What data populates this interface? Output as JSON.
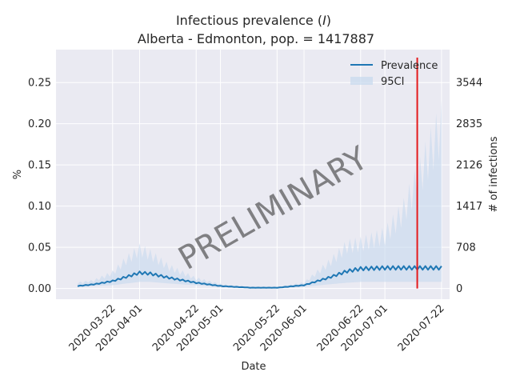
{
  "chart_data": {
    "type": "line",
    "title_line1_prefix": "Infectious prevalence (",
    "title_symbol": "I",
    "title_line1_suffix": ")",
    "title_line2": "Alberta - Edmonton, pop. = 1417887",
    "xlabel": "Date",
    "ylabel_left": "%",
    "ylabel_right": "# of infections",
    "watermark": "PRELIMINARY",
    "x_start": "2020-03-09",
    "x_end": "2020-07-22",
    "xlim": [
      "2020-03-01",
      "2020-07-25"
    ],
    "ylim": [
      -0.013,
      0.29
    ],
    "y_ticks": [
      0.0,
      0.05,
      0.1,
      0.15,
      0.2,
      0.25
    ],
    "y_tick_labels": [
      "0.00",
      "0.05",
      "0.10",
      "0.15",
      "0.20",
      "0.25"
    ],
    "right_ticks": [
      {
        "value": 0,
        "label": "0"
      },
      {
        "value": 708,
        "label": "708"
      },
      {
        "value": 1417,
        "label": "1417"
      },
      {
        "value": 2126,
        "label": "2126"
      },
      {
        "value": 2835,
        "label": "2835"
      },
      {
        "value": 3544,
        "label": "3544"
      }
    ],
    "x_ticks": [
      "2020-03-22",
      "2020-04-01",
      "2020-04-22",
      "2020-05-01",
      "2020-05-22",
      "2020-06-01",
      "2020-06-22",
      "2020-07-01",
      "2020-07-22"
    ],
    "vline_date": "2020-07-13",
    "vline_color": "#e41a1c",
    "line_color": "#1f77b4",
    "band_color": "#c6d8ee",
    "series": [
      {
        "name": "Prevalence",
        "role": "line"
      },
      {
        "name": "95CI",
        "role": "band"
      }
    ],
    "keyframes": [
      {
        "date": "2020-03-09",
        "y": 0.003,
        "lo": 0.002,
        "hi": 0.008
      },
      {
        "date": "2020-03-15",
        "y": 0.005,
        "lo": 0.003,
        "hi": 0.011
      },
      {
        "date": "2020-03-22",
        "y": 0.009,
        "lo": 0.004,
        "hi": 0.022
      },
      {
        "date": "2020-03-27",
        "y": 0.014,
        "lo": 0.006,
        "hi": 0.04
      },
      {
        "date": "2020-04-01",
        "y": 0.019,
        "lo": 0.008,
        "hi": 0.055
      },
      {
        "date": "2020-04-05",
        "y": 0.018,
        "lo": 0.008,
        "hi": 0.048
      },
      {
        "date": "2020-04-12",
        "y": 0.013,
        "lo": 0.006,
        "hi": 0.03
      },
      {
        "date": "2020-04-22",
        "y": 0.007,
        "lo": 0.004,
        "hi": 0.014
      },
      {
        "date": "2020-05-01",
        "y": 0.003,
        "lo": 0.002,
        "hi": 0.006
      },
      {
        "date": "2020-05-12",
        "y": 0.001,
        "lo": 0.0005,
        "hi": 0.002
      },
      {
        "date": "2020-05-22",
        "y": 0.001,
        "lo": 0.0005,
        "hi": 0.002
      },
      {
        "date": "2020-06-01",
        "y": 0.004,
        "lo": 0.002,
        "hi": 0.008
      },
      {
        "date": "2020-06-10",
        "y": 0.013,
        "lo": 0.005,
        "hi": 0.035
      },
      {
        "date": "2020-06-17",
        "y": 0.021,
        "lo": 0.007,
        "hi": 0.06
      },
      {
        "date": "2020-06-22",
        "y": 0.024,
        "lo": 0.008,
        "hi": 0.063
      },
      {
        "date": "2020-07-01",
        "y": 0.025,
        "lo": 0.008,
        "hi": 0.075
      },
      {
        "date": "2020-07-08",
        "y": 0.025,
        "lo": 0.008,
        "hi": 0.11
      },
      {
        "date": "2020-07-15",
        "y": 0.025,
        "lo": 0.008,
        "hi": 0.17
      },
      {
        "date": "2020-07-22",
        "y": 0.025,
        "lo": 0.008,
        "hi": 0.23
      }
    ],
    "legend_position": "top-right",
    "grid": true,
    "style": {
      "plot_bg": "#eaeaf2",
      "grid_color": "#ffffff",
      "text_color": "#262626",
      "watermark_color": "#888888"
    }
  }
}
